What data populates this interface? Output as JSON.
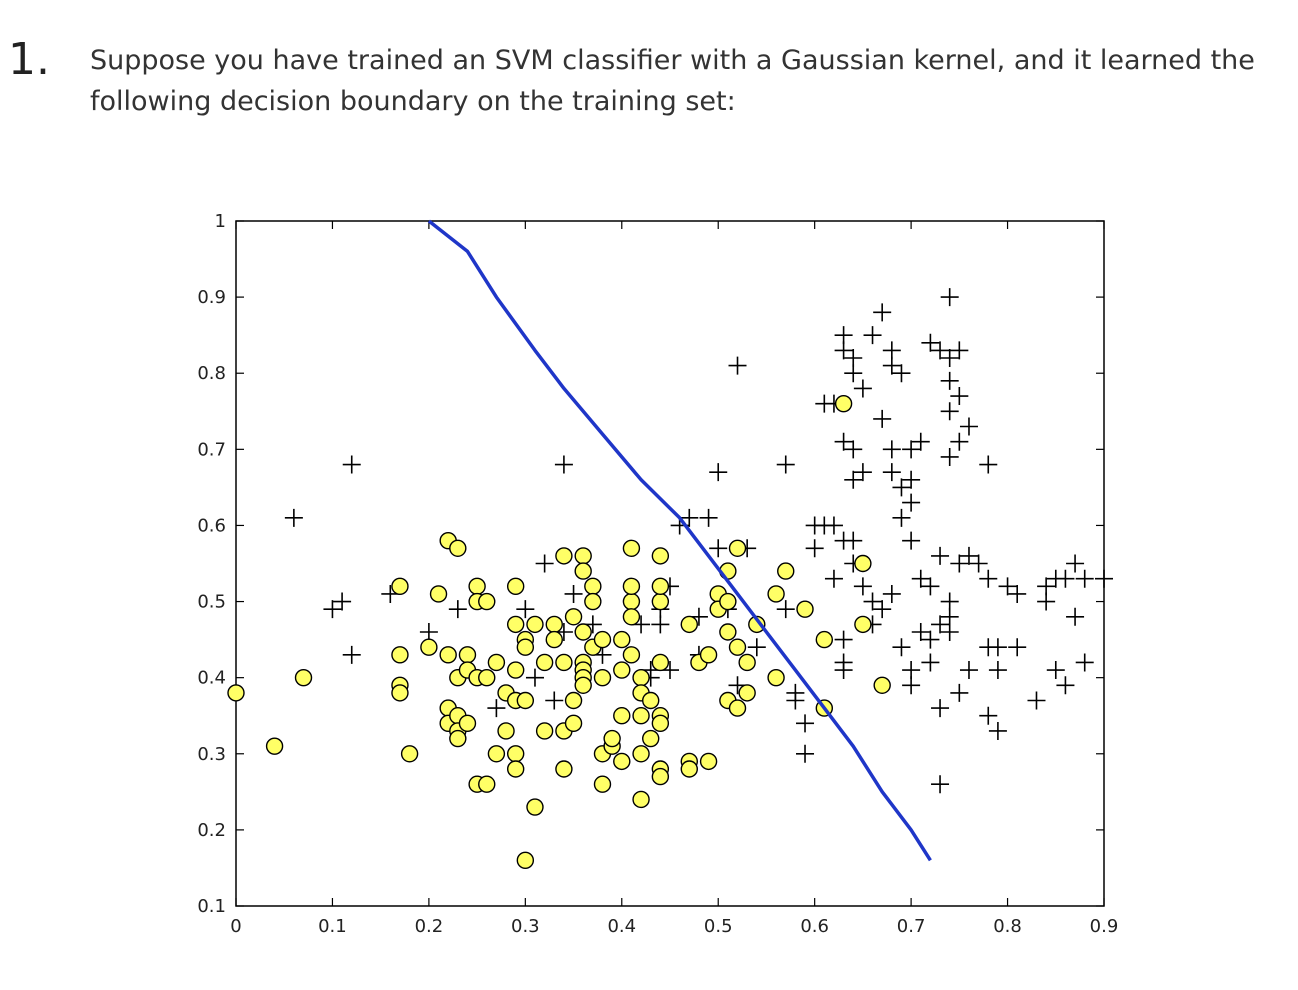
{
  "question": {
    "number": "1.",
    "text": "Suppose you have trained an SVM classifier with a Gaussian kernel, and it learned the following decision boundary on the training set:"
  },
  "chart_data": {
    "type": "scatter",
    "xlim": [
      0,
      0.9
    ],
    "ylim": [
      0.1,
      1
    ],
    "xticks": [
      "0",
      "0.1",
      "0.2",
      "0.3",
      "0.4",
      "0.5",
      "0.6",
      "0.7",
      "0.8",
      "0.9"
    ],
    "yticks": [
      "0.1",
      "0.2",
      "0.3",
      "0.4",
      "0.5",
      "0.6",
      "0.7",
      "0.8",
      "0.9",
      "1"
    ],
    "grid": false,
    "colors": {
      "circle_fill": "#ffff66",
      "boundary": "#1f36c8",
      "plus": "#000000"
    },
    "boundary": [
      [
        0.2,
        1.0
      ],
      [
        0.24,
        0.96
      ],
      [
        0.27,
        0.9
      ],
      [
        0.31,
        0.83
      ],
      [
        0.34,
        0.78
      ],
      [
        0.38,
        0.72
      ],
      [
        0.42,
        0.66
      ],
      [
        0.46,
        0.61
      ],
      [
        0.49,
        0.56
      ],
      [
        0.52,
        0.51
      ],
      [
        0.55,
        0.46
      ],
      [
        0.58,
        0.41
      ],
      [
        0.61,
        0.36
      ],
      [
        0.64,
        0.31
      ],
      [
        0.67,
        0.25
      ],
      [
        0.7,
        0.2
      ],
      [
        0.72,
        0.16
      ]
    ],
    "circles": [
      [
        0.0,
        0.38
      ],
      [
        0.04,
        0.31
      ],
      [
        0.07,
        0.4
      ],
      [
        0.17,
        0.52
      ],
      [
        0.17,
        0.43
      ],
      [
        0.17,
        0.39
      ],
      [
        0.17,
        0.38
      ],
      [
        0.18,
        0.3
      ],
      [
        0.2,
        0.44
      ],
      [
        0.21,
        0.51
      ],
      [
        0.22,
        0.58
      ],
      [
        0.23,
        0.57
      ],
      [
        0.22,
        0.43
      ],
      [
        0.23,
        0.4
      ],
      [
        0.24,
        0.43
      ],
      [
        0.24,
        0.41
      ],
      [
        0.22,
        0.36
      ],
      [
        0.22,
        0.34
      ],
      [
        0.23,
        0.35
      ],
      [
        0.23,
        0.33
      ],
      [
        0.23,
        0.32
      ],
      [
        0.24,
        0.34
      ],
      [
        0.25,
        0.4
      ],
      [
        0.26,
        0.4
      ],
      [
        0.25,
        0.52
      ],
      [
        0.25,
        0.5
      ],
      [
        0.26,
        0.5
      ],
      [
        0.27,
        0.42
      ],
      [
        0.28,
        0.38
      ],
      [
        0.28,
        0.33
      ],
      [
        0.27,
        0.3
      ],
      [
        0.25,
        0.26
      ],
      [
        0.26,
        0.26
      ],
      [
        0.29,
        0.52
      ],
      [
        0.29,
        0.47
      ],
      [
        0.29,
        0.41
      ],
      [
        0.29,
        0.37
      ],
      [
        0.3,
        0.37
      ],
      [
        0.29,
        0.3
      ],
      [
        0.29,
        0.28
      ],
      [
        0.3,
        0.45
      ],
      [
        0.3,
        0.44
      ],
      [
        0.31,
        0.47
      ],
      [
        0.32,
        0.42
      ],
      [
        0.32,
        0.33
      ],
      [
        0.31,
        0.23
      ],
      [
        0.3,
        0.16
      ],
      [
        0.33,
        0.47
      ],
      [
        0.33,
        0.45
      ],
      [
        0.34,
        0.42
      ],
      [
        0.34,
        0.33
      ],
      [
        0.34,
        0.28
      ],
      [
        0.35,
        0.34
      ],
      [
        0.35,
        0.37
      ],
      [
        0.34,
        0.56
      ],
      [
        0.36,
        0.56
      ],
      [
        0.36,
        0.54
      ],
      [
        0.35,
        0.48
      ],
      [
        0.36,
        0.46
      ],
      [
        0.36,
        0.42
      ],
      [
        0.36,
        0.41
      ],
      [
        0.36,
        0.4
      ],
      [
        0.36,
        0.39
      ],
      [
        0.37,
        0.52
      ],
      [
        0.37,
        0.5
      ],
      [
        0.37,
        0.44
      ],
      [
        0.38,
        0.45
      ],
      [
        0.38,
        0.4
      ],
      [
        0.38,
        0.3
      ],
      [
        0.38,
        0.26
      ],
      [
        0.39,
        0.31
      ],
      [
        0.39,
        0.32
      ],
      [
        0.4,
        0.29
      ],
      [
        0.4,
        0.35
      ],
      [
        0.4,
        0.41
      ],
      [
        0.4,
        0.45
      ],
      [
        0.41,
        0.43
      ],
      [
        0.41,
        0.5
      ],
      [
        0.41,
        0.48
      ],
      [
        0.41,
        0.52
      ],
      [
        0.41,
        0.57
      ],
      [
        0.42,
        0.4
      ],
      [
        0.42,
        0.38
      ],
      [
        0.42,
        0.35
      ],
      [
        0.42,
        0.3
      ],
      [
        0.42,
        0.24
      ],
      [
        0.43,
        0.37
      ],
      [
        0.43,
        0.32
      ],
      [
        0.44,
        0.35
      ],
      [
        0.44,
        0.34
      ],
      [
        0.44,
        0.42
      ],
      [
        0.44,
        0.5
      ],
      [
        0.44,
        0.52
      ],
      [
        0.44,
        0.56
      ],
      [
        0.44,
        0.28
      ],
      [
        0.44,
        0.27
      ],
      [
        0.47,
        0.47
      ],
      [
        0.47,
        0.29
      ],
      [
        0.47,
        0.28
      ],
      [
        0.48,
        0.42
      ],
      [
        0.49,
        0.43
      ],
      [
        0.49,
        0.29
      ],
      [
        0.5,
        0.51
      ],
      [
        0.5,
        0.49
      ],
      [
        0.51,
        0.5
      ],
      [
        0.51,
        0.54
      ],
      [
        0.52,
        0.57
      ],
      [
        0.51,
        0.46
      ],
      [
        0.51,
        0.37
      ],
      [
        0.52,
        0.36
      ],
      [
        0.52,
        0.44
      ],
      [
        0.53,
        0.42
      ],
      [
        0.53,
        0.38
      ],
      [
        0.54,
        0.47
      ],
      [
        0.56,
        0.51
      ],
      [
        0.56,
        0.4
      ],
      [
        0.57,
        0.54
      ],
      [
        0.59,
        0.49
      ],
      [
        0.61,
        0.45
      ],
      [
        0.61,
        0.36
      ],
      [
        0.63,
        0.76
      ],
      [
        0.65,
        0.55
      ],
      [
        0.65,
        0.47
      ],
      [
        0.67,
        0.39
      ]
    ],
    "pluses": [
      [
        0.06,
        0.61
      ],
      [
        0.12,
        0.68
      ],
      [
        0.1,
        0.49
      ],
      [
        0.11,
        0.5
      ],
      [
        0.12,
        0.43
      ],
      [
        0.16,
        0.51
      ],
      [
        0.2,
        0.46
      ],
      [
        0.23,
        0.49
      ],
      [
        0.27,
        0.36
      ],
      [
        0.3,
        0.49
      ],
      [
        0.31,
        0.4
      ],
      [
        0.32,
        0.55
      ],
      [
        0.33,
        0.37
      ],
      [
        0.34,
        0.68
      ],
      [
        0.34,
        0.46
      ],
      [
        0.35,
        0.51
      ],
      [
        0.37,
        0.47
      ],
      [
        0.38,
        0.43
      ],
      [
        0.42,
        0.47
      ],
      [
        0.43,
        0.41
      ],
      [
        0.43,
        0.4
      ],
      [
        0.45,
        0.52
      ],
      [
        0.44,
        0.49
      ],
      [
        0.44,
        0.47
      ],
      [
        0.45,
        0.41
      ],
      [
        0.46,
        0.6
      ],
      [
        0.47,
        0.61
      ],
      [
        0.48,
        0.48
      ],
      [
        0.48,
        0.43
      ],
      [
        0.49,
        0.61
      ],
      [
        0.5,
        0.67
      ],
      [
        0.5,
        0.57
      ],
      [
        0.51,
        0.49
      ],
      [
        0.52,
        0.81
      ],
      [
        0.52,
        0.39
      ],
      [
        0.53,
        0.57
      ],
      [
        0.54,
        0.44
      ],
      [
        0.57,
        0.68
      ],
      [
        0.57,
        0.49
      ],
      [
        0.58,
        0.37
      ],
      [
        0.58,
        0.38
      ],
      [
        0.59,
        0.34
      ],
      [
        0.59,
        0.3
      ],
      [
        0.6,
        0.57
      ],
      [
        0.6,
        0.6
      ],
      [
        0.61,
        0.6
      ],
      [
        0.62,
        0.6
      ],
      [
        0.62,
        0.53
      ],
      [
        0.63,
        0.45
      ],
      [
        0.63,
        0.41
      ],
      [
        0.61,
        0.76
      ],
      [
        0.62,
        0.76
      ],
      [
        0.63,
        0.85
      ],
      [
        0.63,
        0.83
      ],
      [
        0.64,
        0.82
      ],
      [
        0.64,
        0.8
      ],
      [
        0.65,
        0.78
      ],
      [
        0.63,
        0.71
      ],
      [
        0.64,
        0.7
      ],
      [
        0.64,
        0.66
      ],
      [
        0.65,
        0.67
      ],
      [
        0.63,
        0.58
      ],
      [
        0.64,
        0.58
      ],
      [
        0.64,
        0.55
      ],
      [
        0.65,
        0.52
      ],
      [
        0.66,
        0.5
      ],
      [
        0.66,
        0.47
      ],
      [
        0.67,
        0.88
      ],
      [
        0.66,
        0.85
      ],
      [
        0.68,
        0.83
      ],
      [
        0.68,
        0.81
      ],
      [
        0.69,
        0.8
      ],
      [
        0.67,
        0.74
      ],
      [
        0.68,
        0.7
      ],
      [
        0.7,
        0.7
      ],
      [
        0.71,
        0.71
      ],
      [
        0.68,
        0.67
      ],
      [
        0.69,
        0.65
      ],
      [
        0.7,
        0.63
      ],
      [
        0.7,
        0.66
      ],
      [
        0.69,
        0.61
      ],
      [
        0.7,
        0.58
      ],
      [
        0.68,
        0.51
      ],
      [
        0.67,
        0.49
      ],
      [
        0.69,
        0.44
      ],
      [
        0.7,
        0.41
      ],
      [
        0.72,
        0.42
      ],
      [
        0.7,
        0.39
      ],
      [
        0.72,
        0.84
      ],
      [
        0.73,
        0.83
      ],
      [
        0.74,
        0.9
      ],
      [
        0.74,
        0.82
      ],
      [
        0.75,
        0.83
      ],
      [
        0.74,
        0.79
      ],
      [
        0.75,
        0.77
      ],
      [
        0.74,
        0.75
      ],
      [
        0.76,
        0.73
      ],
      [
        0.75,
        0.71
      ],
      [
        0.74,
        0.69
      ],
      [
        0.78,
        0.68
      ],
      [
        0.73,
        0.56
      ],
      [
        0.74,
        0.5
      ],
      [
        0.74,
        0.48
      ],
      [
        0.71,
        0.53
      ],
      [
        0.72,
        0.52
      ],
      [
        0.73,
        0.47
      ],
      [
        0.74,
        0.46
      ],
      [
        0.71,
        0.46
      ],
      [
        0.72,
        0.45
      ],
      [
        0.75,
        0.55
      ],
      [
        0.76,
        0.56
      ],
      [
        0.77,
        0.55
      ],
      [
        0.78,
        0.53
      ],
      [
        0.8,
        0.52
      ],
      [
        0.81,
        0.51
      ],
      [
        0.84,
        0.5
      ],
      [
        0.84,
        0.52
      ],
      [
        0.85,
        0.53
      ],
      [
        0.86,
        0.53
      ],
      [
        0.87,
        0.55
      ],
      [
        0.88,
        0.53
      ],
      [
        0.9,
        0.53
      ],
      [
        0.87,
        0.48
      ],
      [
        0.78,
        0.44
      ],
      [
        0.79,
        0.44
      ],
      [
        0.81,
        0.44
      ],
      [
        0.76,
        0.41
      ],
      [
        0.79,
        0.41
      ],
      [
        0.85,
        0.41
      ],
      [
        0.73,
        0.36
      ],
      [
        0.75,
        0.38
      ],
      [
        0.78,
        0.35
      ],
      [
        0.79,
        0.33
      ],
      [
        0.83,
        0.37
      ],
      [
        0.86,
        0.39
      ],
      [
        0.88,
        0.42
      ],
      [
        0.73,
        0.26
      ],
      [
        0.63,
        0.42
      ]
    ]
  }
}
